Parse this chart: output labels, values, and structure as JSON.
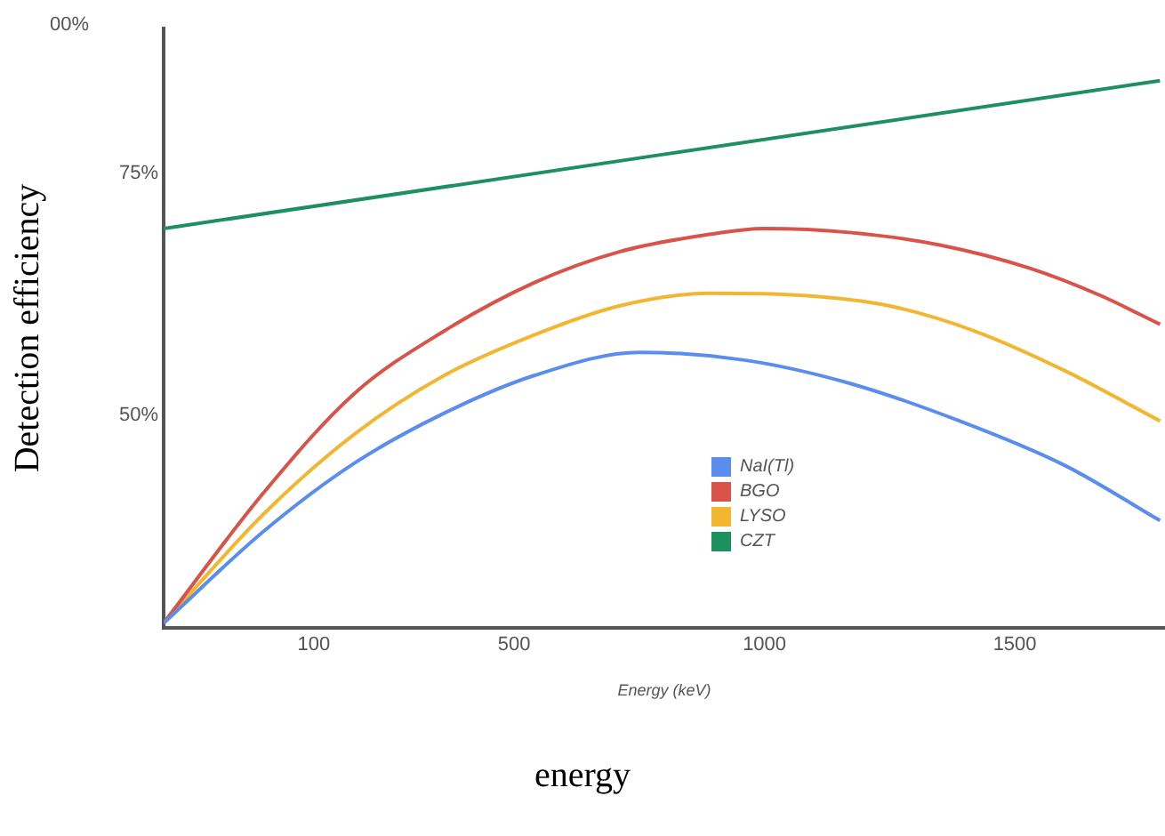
{
  "chart_data": {
    "type": "line",
    "xlabel": "Energy (keV)",
    "ylabel": "Detection efficiency",
    "annotations": [
      "energy",
      "00%"
    ],
    "xlim": [
      -200,
      1800
    ],
    "xticks": [
      100,
      500,
      1000,
      1500
    ],
    "ylim": [
      28,
      90
    ],
    "yticks": [
      {
        "value": 50,
        "label": "50%"
      },
      {
        "value": 75,
        "label": "75%"
      }
    ],
    "grid": false,
    "legend": "bottom",
    "marker": "none",
    "line_style": "solid",
    "tick_labels": true,
    "series": [
      {
        "name": "NaI(Tl)",
        "color": "#5b8def",
        "x": [
          -200,
          0,
          180,
          360,
          540,
          750,
          960,
          1170,
          1390,
          1600,
          1790
        ],
        "values": [
          28.5,
          38.0,
          45.0,
          50.2,
          54.1,
          56.5,
          55.7,
          53.3,
          49.4,
          44.8,
          39.1
        ]
      },
      {
        "name": "BGO",
        "color": "#d9534a",
        "x": [
          -200,
          0,
          180,
          360,
          540,
          710,
          890,
          1000,
          1170,
          1350,
          1530,
          1670,
          1790
        ],
        "values": [
          28.5,
          42.0,
          52.2,
          58.7,
          63.7,
          66.9,
          68.7,
          69.3,
          68.9,
          67.6,
          65.2,
          62.4,
          59.4
        ]
      },
      {
        "name": "LYSO",
        "color": "#f2b630",
        "x": [
          -200,
          0,
          180,
          360,
          540,
          710,
          890,
          1070,
          1250,
          1420,
          1600,
          1790
        ],
        "values": [
          28.5,
          39.8,
          48.0,
          54.1,
          58.3,
          61.3,
          62.6,
          62.4,
          61.3,
          58.7,
          54.6,
          49.4
        ]
      },
      {
        "name": "CZT",
        "color": "#1e8f5e",
        "x": [
          -200,
          1790
        ],
        "values": [
          69.3,
          84.6
        ]
      }
    ]
  }
}
